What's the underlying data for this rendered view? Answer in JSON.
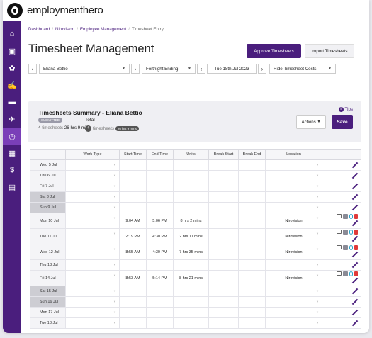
{
  "app": {
    "logo_text": "employmenthero"
  },
  "sidebar": {
    "items": [
      {
        "name": "home",
        "glyph": "⌂"
      },
      {
        "name": "briefcase",
        "glyph": "▣"
      },
      {
        "name": "benefits",
        "glyph": "✿"
      },
      {
        "name": "recognition",
        "glyph": "✍"
      },
      {
        "name": "folder",
        "glyph": "▬"
      },
      {
        "name": "travel",
        "glyph": "✈"
      },
      {
        "name": "clock",
        "glyph": "◷"
      },
      {
        "name": "calendar",
        "glyph": "▦"
      },
      {
        "name": "money",
        "glyph": "$"
      },
      {
        "name": "clipboard",
        "glyph": "▤"
      }
    ]
  },
  "breadcrumb": [
    "Dashboard",
    "Nirovision",
    "Employee Management",
    "Timesheet Entry"
  ],
  "page_title": "Timesheet Management",
  "header_buttons": {
    "approve": "Approve Timesheets",
    "import": "Import Timesheets"
  },
  "filters": {
    "employee": "Eliana Bettio",
    "period": "Fortnight Ending",
    "date": "Tue 18th Jul 2023",
    "costs": "Hide Timesheet Costs"
  },
  "summary": {
    "title": "Timesheets Summary - Eliana Bettio",
    "badge": "SUBMITTED",
    "total_label": "Total",
    "count": "4",
    "count_word": "timesheets",
    "hours": "26 hrs 9 mins",
    "count2": "4",
    "count2_word": "timesheets",
    "hours_pill": "26 hrs 9 mins",
    "tips": "Tips",
    "actions": "Actions",
    "save": "Save"
  },
  "table": {
    "columns": [
      "",
      "Work Type",
      "Start Time",
      "End Time",
      "Units",
      "Break Start",
      "Break End",
      "Location",
      ""
    ],
    "rows": [
      {
        "day": "Wed 5 Jul",
        "weekend": false,
        "start": "",
        "end": "",
        "units": "",
        "location": "",
        "filled": false
      },
      {
        "day": "Thu 6 Jul",
        "weekend": false,
        "start": "",
        "end": "",
        "units": "",
        "location": "",
        "filled": false
      },
      {
        "day": "Fri 7 Jul",
        "weekend": false,
        "start": "",
        "end": "",
        "units": "",
        "location": "",
        "filled": false
      },
      {
        "day": "Sat 8 Jul",
        "weekend": true,
        "start": "",
        "end": "",
        "units": "",
        "location": "",
        "filled": false
      },
      {
        "day": "Sun 9 Jul",
        "weekend": true,
        "start": "",
        "end": "",
        "units": "",
        "location": "",
        "filled": false
      },
      {
        "day": "Mon 10 Jul",
        "weekend": false,
        "start": "9:04 AM",
        "end": "5:06 PM",
        "units": "8 hrs 2 mins",
        "location": "Nirovision",
        "filled": true
      },
      {
        "day": "Tue 11 Jul",
        "weekend": false,
        "start": "2:19 PM",
        "end": "4:30 PM",
        "units": "2 hrs 11 mins",
        "location": "Nirovision",
        "filled": true
      },
      {
        "day": "Wed 12 Jul",
        "weekend": false,
        "start": "8:55 AM",
        "end": "4:30 PM",
        "units": "7 hrs 35 mins",
        "location": "Nirovision",
        "filled": true
      },
      {
        "day": "Thu 13 Jul",
        "weekend": false,
        "start": "",
        "end": "",
        "units": "",
        "location": "",
        "filled": false
      },
      {
        "day": "Fri 14 Jul",
        "weekend": false,
        "start": "8:53 AM",
        "end": "5:14 PM",
        "units": "8 hrs 21 mins",
        "location": "Nirovision",
        "filled": true
      },
      {
        "day": "Sat 15 Jul",
        "weekend": true,
        "start": "",
        "end": "",
        "units": "",
        "location": "",
        "filled": false
      },
      {
        "day": "Sun 16 Jul",
        "weekend": true,
        "start": "",
        "end": "",
        "units": "",
        "location": "",
        "filled": false
      },
      {
        "day": "Mon 17 Jul",
        "weekend": false,
        "start": "",
        "end": "",
        "units": "",
        "location": "",
        "filled": false
      },
      {
        "day": "Tue 18 Jul",
        "weekend": false,
        "start": "",
        "end": "",
        "units": "",
        "location": "",
        "filled": false
      }
    ]
  },
  "colors": {
    "brand": "#4a1e7d",
    "weekend": "#cdcdd3",
    "trash": "#e03a3a",
    "clip": "#2ba3c9"
  }
}
